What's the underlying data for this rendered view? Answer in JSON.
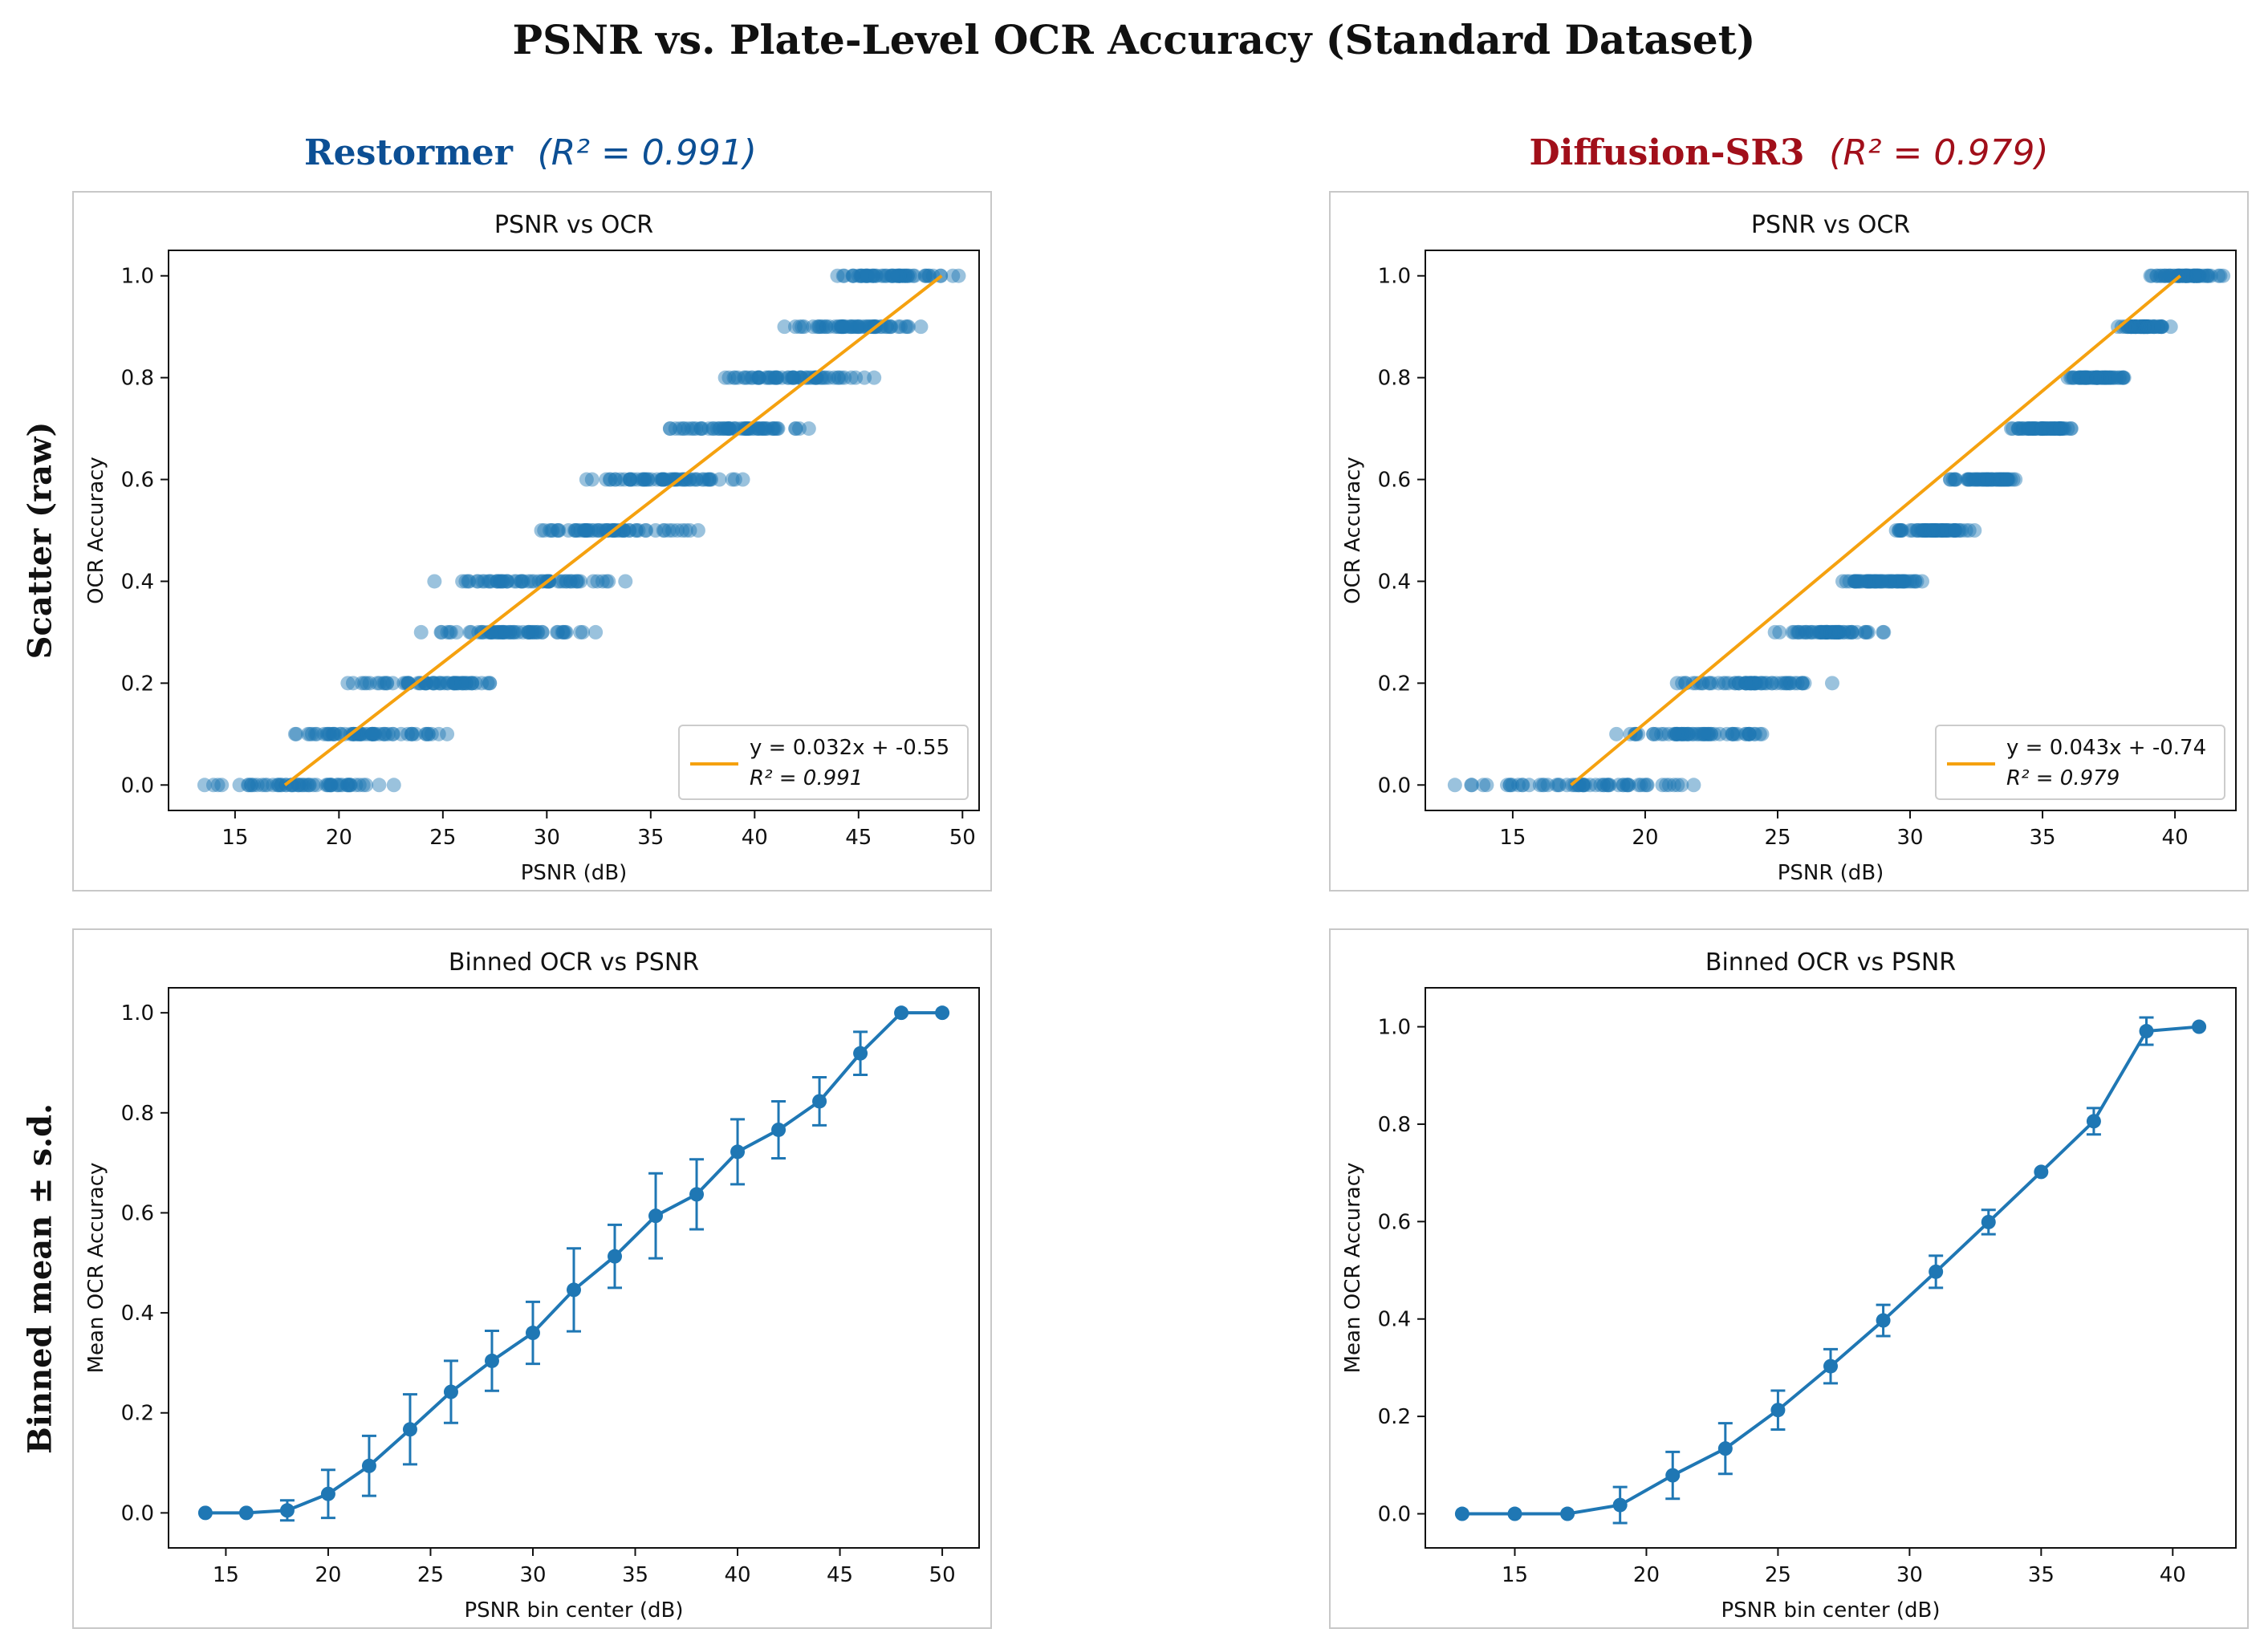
{
  "suptitle": "PSNR vs. Plate-Level OCR Accuracy (Standard Dataset)",
  "column_titles": [
    {
      "name": "Restormer",
      "r2": "(R² = 0.991)",
      "color": "#0c4f94"
    },
    {
      "name": "Diffusion-SR3",
      "r2": "(R² = 0.979)",
      "color": "#a10f1a"
    }
  ],
  "row_labels": [
    "Scatter (raw)",
    "Binned mean ± s.d."
  ],
  "colors": {
    "points": "#1f77b4",
    "fit": "#f5a10f",
    "axes": "#111111"
  },
  "chart_data": [
    {
      "id": "tl",
      "type": "scatter",
      "title": "PSNR vs OCR",
      "xlabel": "PSNR (dB)",
      "ylabel": "OCR Accuracy",
      "xlim": [
        11.8,
        50.8
      ],
      "ylim": [
        -0.05,
        1.05
      ],
      "xticks": [
        15,
        20,
        25,
        30,
        35,
        40,
        45,
        50
      ],
      "yticks": [
        0.0,
        0.2,
        0.4,
        0.6,
        0.8,
        1.0
      ],
      "tick_labels_y": [
        "0.0",
        "0.2",
        "0.4",
        "0.6",
        "0.8",
        "1.0"
      ],
      "levels": [
        {
          "y": 0.0,
          "range": [
            13.5,
            22.7
          ]
        },
        {
          "y": 0.1,
          "range": [
            17.0,
            25.8
          ]
        },
        {
          "y": 0.2,
          "range": [
            20.2,
            29.0
          ]
        },
        {
          "y": 0.3,
          "range": [
            23.5,
            32.6
          ]
        },
        {
          "y": 0.4,
          "range": [
            24.4,
            33.9
          ]
        },
        {
          "y": 0.5,
          "range": [
            29.6,
            37.5
          ]
        },
        {
          "y": 0.6,
          "range": [
            31.8,
            40.6
          ]
        },
        {
          "y": 0.7,
          "range": [
            35.5,
            42.8
          ]
        },
        {
          "y": 0.8,
          "range": [
            38.3,
            45.8
          ]
        },
        {
          "y": 0.9,
          "range": [
            41.3,
            48.4
          ]
        },
        {
          "y": 1.0,
          "range": [
            43.9,
            49.9
          ]
        }
      ],
      "fit": {
        "x": [
          17.4,
          49.0
        ],
        "y": [
          0.0,
          1.0
        ]
      },
      "legend": {
        "position": "lower-right",
        "line1": "y = 0.032x + -0.55",
        "line2": "R² = 0.991"
      }
    },
    {
      "id": "tr",
      "type": "scatter",
      "title": "PSNR vs OCR",
      "xlabel": "PSNR (dB)",
      "ylabel": "OCR Accuracy",
      "xlim": [
        11.7,
        42.3
      ],
      "ylim": [
        -0.05,
        1.05
      ],
      "xticks": [
        15,
        20,
        25,
        30,
        35,
        40
      ],
      "yticks": [
        0.0,
        0.2,
        0.4,
        0.6,
        0.8,
        1.0
      ],
      "tick_labels_y": [
        "0.0",
        "0.2",
        "0.4",
        "0.6",
        "0.8",
        "1.0"
      ],
      "levels": [
        {
          "y": 0.0,
          "range": [
            12.8,
            22.0
          ]
        },
        {
          "y": 0.1,
          "range": [
            18.8,
            25.0
          ]
        },
        {
          "y": 0.2,
          "range": [
            20.8,
            27.1
          ]
        },
        {
          "y": 0.3,
          "range": [
            24.7,
            29.3
          ]
        },
        {
          "y": 0.4,
          "range": [
            27.2,
            30.5
          ]
        },
        {
          "y": 0.5,
          "range": [
            29.3,
            32.5
          ]
        },
        {
          "y": 0.6,
          "range": [
            31.5,
            34.1
          ]
        },
        {
          "y": 0.7,
          "range": [
            33.7,
            36.1
          ]
        },
        {
          "y": 0.8,
          "range": [
            35.8,
            38.1
          ]
        },
        {
          "y": 0.9,
          "range": [
            37.8,
            39.9
          ]
        },
        {
          "y": 1.0,
          "range": [
            39.0,
            41.9
          ]
        }
      ],
      "fit": {
        "x": [
          17.2,
          40.2
        ],
        "y": [
          0.0,
          1.0
        ]
      },
      "legend": {
        "position": "lower-right",
        "line1": "y = 0.043x + -0.74",
        "line2": "R² = 0.979"
      }
    },
    {
      "id": "bl",
      "type": "line",
      "title": "Binned OCR vs PSNR",
      "xlabel": "PSNR bin center (dB)",
      "ylabel": "Mean OCR Accuracy",
      "xlim": [
        12.2,
        51.8
      ],
      "ylim": [
        -0.07,
        1.05
      ],
      "xticks": [
        15,
        20,
        25,
        30,
        35,
        40,
        45,
        50
      ],
      "yticks": [
        0.0,
        0.2,
        0.4,
        0.6,
        0.8,
        1.0
      ],
      "tick_labels_y": [
        "0.0",
        "0.2",
        "0.4",
        "0.6",
        "0.8",
        "1.0"
      ],
      "x": [
        14,
        16,
        18,
        20,
        22,
        24,
        26,
        28,
        30,
        32,
        34,
        36,
        38,
        40,
        42,
        44,
        46,
        48,
        50
      ],
      "y": [
        0.0,
        0.0,
        0.005,
        0.038,
        0.094,
        0.167,
        0.242,
        0.304,
        0.36,
        0.446,
        0.513,
        0.594,
        0.637,
        0.722,
        0.766,
        0.823,
        0.919,
        1.0,
        1.0
      ],
      "err": [
        0.0,
        0.0,
        0.02,
        0.048,
        0.06,
        0.07,
        0.062,
        0.06,
        0.062,
        0.083,
        0.063,
        0.085,
        0.07,
        0.065,
        0.057,
        0.048,
        0.043,
        0.0,
        0.0
      ]
    },
    {
      "id": "br",
      "type": "line",
      "title": "Binned OCR vs PSNR",
      "xlabel": "PSNR bin center (dB)",
      "ylabel": "Mean OCR Accuracy",
      "xlim": [
        11.6,
        42.4
      ],
      "ylim": [
        -0.07,
        1.08
      ],
      "xticks": [
        15,
        20,
        25,
        30,
        35,
        40
      ],
      "yticks": [
        0.0,
        0.2,
        0.4,
        0.6,
        0.8,
        1.0
      ],
      "tick_labels_y": [
        "0.0",
        "0.2",
        "0.4",
        "0.6",
        "0.8",
        "1.0"
      ],
      "x": [
        13,
        15,
        17,
        19,
        21,
        23,
        25,
        27,
        29,
        31,
        33,
        35,
        37,
        39,
        41
      ],
      "y": [
        0.0,
        0.0,
        0.0,
        0.018,
        0.079,
        0.134,
        0.213,
        0.303,
        0.397,
        0.497,
        0.599,
        0.702,
        0.806,
        0.991,
        1.0
      ],
      "err": [
        0.0,
        0.0,
        0.0,
        0.037,
        0.048,
        0.052,
        0.04,
        0.035,
        0.032,
        0.033,
        0.025,
        0.0,
        0.027,
        0.028,
        0.0
      ]
    }
  ]
}
